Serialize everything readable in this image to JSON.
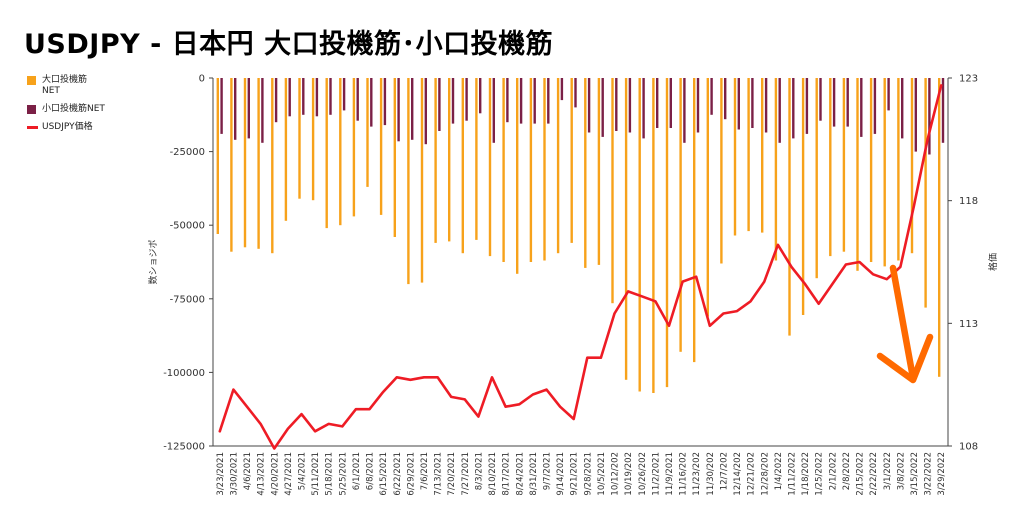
{
  "title": "USDJPY - 日本円 大口投機筋･小口投機筋",
  "legend": {
    "large": "大口投機筋NET",
    "small": "小口投機筋NET",
    "price": "USDJPY価格"
  },
  "colors": {
    "large": "#f7a21b",
    "small": "#7b2046",
    "price": "#ee1c25",
    "arrow": "#ff6a00"
  },
  "chart_data": {
    "type": "bar",
    "title": "USDJPY - 日本円 大口投機筋･小口投機筋",
    "ylabel": "数ショジポ",
    "y2label": "格価",
    "ylim": [
      -125000,
      0
    ],
    "y2lim": [
      108,
      123
    ],
    "yticks": [
      0,
      -25000,
      -50000,
      -75000,
      -100000,
      -125000
    ],
    "yticklabels": [
      "0",
      "-25000",
      "-50000",
      "-75000",
      "-100000",
      "-125000"
    ],
    "y2ticks": [
      123,
      118,
      113,
      108
    ],
    "categories": [
      "3/23/2021",
      "3/30/2021",
      "4/6/2021",
      "4/13/2021",
      "4/20/2021",
      "4/27/2021",
      "5/4/2021",
      "5/11/2021",
      "5/18/2021",
      "5/25/2021",
      "6/1/2021",
      "6/8/2021",
      "6/15/2021",
      "6/22/2021",
      "6/29/2021",
      "7/6/2021",
      "7/13/2021",
      "7/20/2021",
      "7/27/2021",
      "8/3/2021",
      "8/10/2021",
      "8/17/2021",
      "8/24/2021",
      "8/31/2021",
      "9/7/2021",
      "9/14/2021",
      "9/21/2021",
      "9/28/2021",
      "10/5/2021",
      "10/12/2021",
      "10/19/2021",
      "10/26/2021",
      "11/2/2021",
      "11/9/2021",
      "11/16/2021",
      "11/23/2021",
      "11/30/2021",
      "12/7/2021",
      "12/14/2021",
      "12/21/2021",
      "12/28/2021",
      "1/4/2022",
      "1/11/2022",
      "1/18/2022",
      "1/25/2022",
      "2/1/2022",
      "2/8/2022",
      "2/15/2022",
      "2/22/2022",
      "3/1/2022",
      "3/8/2022",
      "3/15/2022",
      "3/22/2022",
      "3/29/2022"
    ],
    "xticklabels": [
      "3/23/2021",
      "3/30/2021",
      "4/6/2021",
      "4/13/2021",
      "4/20/2021",
      "4/27/2021",
      "5/4/2021",
      "5/11/2021",
      "5/18/2021",
      "5/25/2021",
      "6/1/2021",
      "6/8/2021",
      "6/15/2021",
      "6/22/2021",
      "6/29/2021",
      "7/6/2021",
      "7/13/2021",
      "7/20/2021",
      "7/27/2021",
      "8/3/2021",
      "8/10/2021",
      "8/17/2021",
      "8/24/2021",
      "8/31/2021",
      "9/7/2021",
      "9/14/2021",
      "9/21/2021",
      "9/28/2021",
      "10/5/2021",
      "10/12/202",
      "10/19/202",
      "10/26/202",
      "11/2/2021",
      "11/9/2021",
      "11/16/202",
      "11/23/202",
      "11/30/202",
      "12/7/202",
      "12/14/202",
      "12/21/202",
      "12/28/202",
      "1/4/2022",
      "1/11/2022",
      "1/18/2022",
      "1/25/2022",
      "2/1/2022",
      "2/8/2022",
      "2/15/2022",
      "2/22/2022",
      "3/1/2022",
      "3/8/2022",
      "3/15/2022",
      "3/22/2022",
      "3/29/2022"
    ],
    "series": [
      {
        "name": "大口投機筋NET",
        "kind": "bar",
        "values": [
          -53000,
          -59000,
          -57500,
          -58000,
          -59500,
          -48500,
          -41000,
          -41500,
          -51000,
          -50000,
          -47000,
          -37000,
          -46500,
          -54000,
          -70000,
          -69500,
          -56000,
          -55500,
          -59500,
          -55000,
          -60500,
          -62500,
          -66500,
          -62500,
          -62000,
          -59500,
          -56000,
          -64500,
          -63500,
          -76500,
          -102500,
          -106500,
          -107000,
          -105000,
          -93000,
          -96500,
          -81000,
          -63000,
          -53500,
          -52000,
          -52500,
          -62000,
          -87500,
          -80500,
          -68000,
          -60500,
          -59000,
          -65500,
          -62500,
          -64000,
          -62000,
          -59500,
          -78000,
          -101500
        ]
      },
      {
        "name": "小口投機筋NET",
        "kind": "bar",
        "values": [
          -19000,
          -21000,
          -20500,
          -22000,
          -15000,
          -13000,
          -12500,
          -13000,
          -12500,
          -11000,
          -14500,
          -16500,
          -16000,
          -21500,
          -21000,
          -22500,
          -18000,
          -15500,
          -14500,
          -12000,
          -22000,
          -15000,
          -15500,
          -15500,
          -15500,
          -7500,
          -10000,
          -18500,
          -20000,
          -18000,
          -18500,
          -20500,
          -17000,
          -17000,
          -22000,
          -18500,
          -12500,
          -14000,
          -17500,
          -17000,
          -18500,
          -22000,
          -20500,
          -19000,
          -14500,
          -16500,
          -16500,
          -20000,
          -19000,
          -11000,
          -20500,
          -25000,
          -26000,
          -22000
        ]
      },
      {
        "name": "USDJPY価格",
        "kind": "line",
        "values": [
          108.6,
          110.3,
          109.6,
          108.9,
          107.9,
          108.7,
          109.3,
          108.6,
          108.9,
          108.8,
          109.5,
          109.5,
          110.2,
          110.8,
          110.7,
          110.8,
          110.8,
          110.0,
          109.9,
          109.2,
          110.8,
          109.6,
          109.7,
          110.1,
          110.3,
          109.6,
          109.1,
          111.6,
          111.6,
          113.4,
          114.3,
          114.1,
          113.9,
          112.9,
          114.7,
          114.9,
          112.9,
          113.4,
          113.5,
          113.9,
          114.7,
          116.2,
          115.3,
          114.6,
          113.8,
          114.6,
          115.4,
          115.5,
          115.0,
          114.8,
          115.3,
          117.8,
          120.5,
          122.7
        ]
      }
    ],
    "annotation": "arrow pointing down",
    "grid": false,
    "legend_position": "left"
  }
}
